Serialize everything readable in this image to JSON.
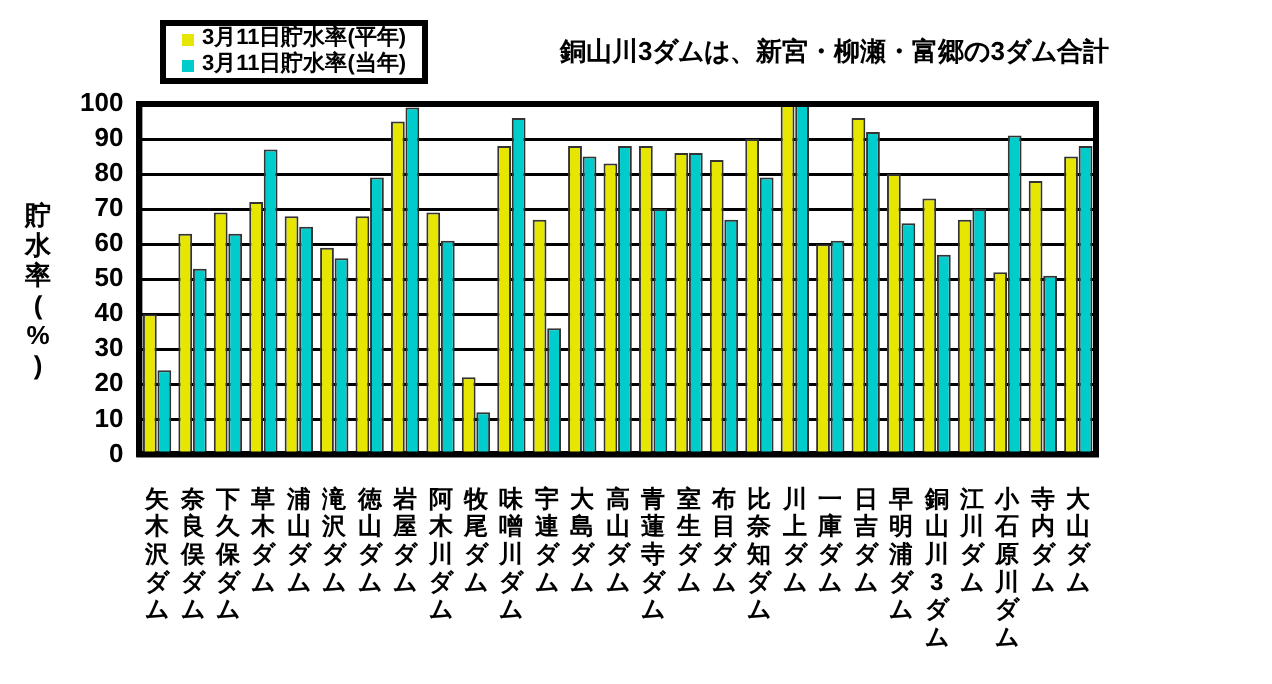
{
  "chart_data": {
    "type": "bar",
    "title": "銅山川3ダムは、新宮・柳瀬・富郷の3ダム合計",
    "ylabel": "貯水率(%)",
    "categories": [
      "矢木沢ダム",
      "奈良俣ダム",
      "下久保ダム",
      "草木ダム",
      "浦山ダム",
      "滝沢ダム",
      "徳山ダム",
      "岩屋ダム",
      "阿木川ダム",
      "牧尾ダム",
      "味噌川ダム",
      "宇連ダム",
      "大島ダム",
      "高山ダム",
      "青蓮寺ダム",
      "室生ダム",
      "布目ダム",
      "比奈知ダム",
      "川上ダム",
      "一庫ダム",
      "日吉ダム",
      "早明浦ダム",
      "銅山川3ダム",
      "江川ダム",
      "小石原川ダム",
      "寺内ダム",
      "大山ダム"
    ],
    "series": [
      {
        "name": "3月11日貯水率(平年)",
        "color": "#e6e600",
        "values": [
          40,
          63,
          69,
          72,
          68,
          59,
          68,
          95,
          69,
          22,
          88,
          67,
          88,
          83,
          88,
          86,
          84,
          90,
          100,
          60,
          96,
          80,
          73,
          67,
          52,
          78,
          85
        ]
      },
      {
        "name": "3月11日貯水率(当年)",
        "color": "#00cccc",
        "values": [
          24,
          53,
          63,
          87,
          65,
          56,
          79,
          99,
          61,
          12,
          96,
          36,
          85,
          88,
          70,
          86,
          67,
          79,
          100,
          61,
          92,
          66,
          57,
          70,
          91,
          51,
          88
        ]
      }
    ],
    "ylim": [
      0,
      100
    ],
    "yticks": [
      0,
      10,
      20,
      30,
      40,
      50,
      60,
      70,
      80,
      90,
      100
    ],
    "grid": "y",
    "legend": "top left"
  }
}
